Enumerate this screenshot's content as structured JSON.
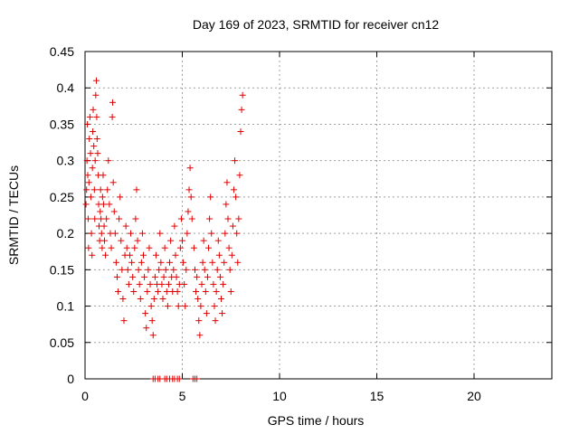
{
  "chart_data": {
    "type": "scatter",
    "title": "Day 169 of 2023, SRMTID for receiver cn12",
    "xlabel": "GPS time / hours",
    "ylabel": "SRMTID / TECUs",
    "xlim": [
      0,
      24
    ],
    "ylim": [
      0,
      0.45
    ],
    "xticks": [
      0,
      5,
      10,
      15,
      20
    ],
    "xtick_labels": [
      "0",
      "5",
      "10",
      "15",
      "20"
    ],
    "yticks": [
      0,
      0.05,
      0.1,
      0.15,
      0.2,
      0.25,
      0.3,
      0.35,
      0.4,
      0.45
    ],
    "ytick_labels": [
      "0",
      "0.05",
      "0.1",
      "0.15",
      "0.2",
      "0.25",
      "0.3",
      "0.35",
      "0.4",
      "0.45"
    ],
    "grid": true,
    "marker": "+",
    "color": "#e00000",
    "series": [
      {
        "name": "SRMTID",
        "points": [
          [
            0.05,
            0.24
          ],
          [
            0.08,
            0.26
          ],
          [
            0.1,
            0.3
          ],
          [
            0.12,
            0.35
          ],
          [
            0.14,
            0.28
          ],
          [
            0.16,
            0.22
          ],
          [
            0.18,
            0.18
          ],
          [
            0.2,
            0.27
          ],
          [
            0.22,
            0.33
          ],
          [
            0.25,
            0.36
          ],
          [
            0.28,
            0.31
          ],
          [
            0.3,
            0.25
          ],
          [
            0.33,
            0.2
          ],
          [
            0.36,
            0.17
          ],
          [
            0.38,
            0.29
          ],
          [
            0.4,
            0.34
          ],
          [
            0.42,
            0.37
          ],
          [
            0.45,
            0.32
          ],
          [
            0.48,
            0.26
          ],
          [
            0.5,
            0.22
          ],
          [
            0.52,
            0.3
          ],
          [
            0.55,
            0.39
          ],
          [
            0.58,
            0.41
          ],
          [
            0.6,
            0.36
          ],
          [
            0.62,
            0.33
          ],
          [
            0.65,
            0.31
          ],
          [
            0.68,
            0.28
          ],
          [
            0.7,
            0.24
          ],
          [
            0.72,
            0.21
          ],
          [
            0.75,
            0.19
          ],
          [
            0.78,
            0.23
          ],
          [
            0.8,
            0.26
          ],
          [
            0.82,
            0.22
          ],
          [
            0.85,
            0.2
          ],
          [
            0.88,
            0.18
          ],
          [
            0.9,
            0.25
          ],
          [
            0.93,
            0.28
          ],
          [
            0.95,
            0.24
          ],
          [
            0.98,
            0.21
          ],
          [
            1.0,
            0.19
          ],
          [
            1.05,
            0.17
          ],
          [
            1.1,
            0.22
          ],
          [
            1.15,
            0.26
          ],
          [
            1.2,
            0.3
          ],
          [
            1.25,
            0.24
          ],
          [
            1.3,
            0.2
          ],
          [
            1.35,
            0.18
          ],
          [
            1.4,
            0.36
          ],
          [
            1.42,
            0.38
          ],
          [
            1.45,
            0.27
          ],
          [
            1.5,
            0.23
          ],
          [
            1.55,
            0.2
          ],
          [
            1.6,
            0.16
          ],
          [
            1.65,
            0.14
          ],
          [
            1.7,
            0.12
          ],
          [
            1.75,
            0.22
          ],
          [
            1.8,
            0.25
          ],
          [
            1.85,
            0.19
          ],
          [
            1.9,
            0.15
          ],
          [
            1.95,
            0.11
          ],
          [
            2.0,
            0.08
          ],
          [
            2.05,
            0.17
          ],
          [
            2.1,
            0.21
          ],
          [
            2.15,
            0.18
          ],
          [
            2.2,
            0.15
          ],
          [
            2.25,
            0.13
          ],
          [
            2.3,
            0.17
          ],
          [
            2.35,
            0.2
          ],
          [
            2.4,
            0.16
          ],
          [
            2.45,
            0.14
          ],
          [
            2.5,
            0.12
          ],
          [
            2.55,
            0.18
          ],
          [
            2.6,
            0.22
          ],
          [
            2.65,
            0.26
          ],
          [
            2.7,
            0.19
          ],
          [
            2.75,
            0.15
          ],
          [
            2.8,
            0.13
          ],
          [
            2.85,
            0.11
          ],
          [
            2.9,
            0.16
          ],
          [
            2.95,
            0.2
          ],
          [
            3.0,
            0.17
          ],
          [
            3.05,
            0.14
          ],
          [
            3.1,
            0.09
          ],
          [
            3.15,
            0.07
          ],
          [
            3.2,
            0.12
          ],
          [
            3.25,
            0.15
          ],
          [
            3.3,
            0.18
          ],
          [
            3.35,
            0.13
          ],
          [
            3.4,
            0.1
          ],
          [
            3.45,
            0.08
          ],
          [
            3.5,
            0.06
          ],
          [
            3.55,
            0.11
          ],
          [
            3.6,
            0.14
          ],
          [
            3.65,
            0.17
          ],
          [
            3.7,
            0.13
          ],
          [
            3.75,
            0.12
          ],
          [
            3.8,
            0.15
          ],
          [
            3.85,
            0.2
          ],
          [
            3.9,
            0.16
          ],
          [
            3.95,
            0.13
          ],
          [
            4.0,
            0.11
          ],
          [
            4.05,
            0.14
          ],
          [
            4.1,
            0.18
          ],
          [
            4.15,
            0.15
          ],
          [
            4.2,
            0.12
          ],
          [
            4.25,
            0.1
          ],
          [
            4.3,
            0.13
          ],
          [
            4.35,
            0.16
          ],
          [
            4.4,
            0.19
          ],
          [
            4.45,
            0.14
          ],
          [
            4.5,
            0.12
          ],
          [
            4.55,
            0.15
          ],
          [
            4.6,
            0.21
          ],
          [
            4.65,
            0.17
          ],
          [
            4.7,
            0.14
          ],
          [
            4.75,
            0.12
          ],
          [
            4.8,
            0.1
          ],
          [
            4.85,
            0.13
          ],
          [
            4.9,
            0.18
          ],
          [
            4.95,
            0.22
          ],
          [
            5.0,
            0.19
          ],
          [
            5.05,
            0.16
          ],
          [
            5.1,
            0.13
          ],
          [
            5.15,
            0.1
          ],
          [
            5.2,
            0.15
          ],
          [
            5.25,
            0.2
          ],
          [
            5.3,
            0.23
          ],
          [
            5.35,
            0.26
          ],
          [
            5.4,
            0.29
          ],
          [
            5.45,
            0.25
          ],
          [
            5.5,
            0.22
          ],
          [
            5.6,
            0.18
          ],
          [
            5.65,
            0.15
          ],
          [
            5.7,
            0.12
          ],
          [
            5.75,
            0.14
          ],
          [
            5.8,
            0.11
          ],
          [
            5.85,
            0.08
          ],
          [
            5.9,
            0.06
          ],
          [
            5.95,
            0.1
          ],
          [
            6.0,
            0.13
          ],
          [
            6.05,
            0.16
          ],
          [
            6.1,
            0.19
          ],
          [
            6.15,
            0.15
          ],
          [
            6.2,
            0.12
          ],
          [
            6.25,
            0.09
          ],
          [
            6.3,
            0.14
          ],
          [
            6.35,
            0.18
          ],
          [
            6.4,
            0.22
          ],
          [
            6.45,
            0.25
          ],
          [
            6.5,
            0.2
          ],
          [
            6.55,
            0.16
          ],
          [
            6.6,
            0.13
          ],
          [
            6.65,
            0.1
          ],
          [
            6.7,
            0.08
          ],
          [
            6.75,
            0.12
          ],
          [
            6.8,
            0.15
          ],
          [
            6.85,
            0.19
          ],
          [
            6.9,
            0.17
          ],
          [
            6.95,
            0.14
          ],
          [
            7.0,
            0.11
          ],
          [
            7.05,
            0.09
          ],
          [
            7.1,
            0.13
          ],
          [
            7.15,
            0.16
          ],
          [
            7.2,
            0.2
          ],
          [
            7.25,
            0.24
          ],
          [
            7.3,
            0.27
          ],
          [
            7.35,
            0.22
          ],
          [
            7.4,
            0.18
          ],
          [
            7.45,
            0.15
          ],
          [
            7.5,
            0.12
          ],
          [
            7.55,
            0.17
          ],
          [
            7.6,
            0.21
          ],
          [
            7.65,
            0.26
          ],
          [
            7.7,
            0.3
          ],
          [
            7.75,
            0.25
          ],
          [
            7.8,
            0.2
          ],
          [
            7.85,
            0.16
          ],
          [
            7.9,
            0.22
          ],
          [
            7.95,
            0.28
          ],
          [
            8.0,
            0.34
          ],
          [
            8.05,
            0.37
          ],
          [
            8.1,
            0.39
          ],
          [
            3.5,
            0
          ],
          [
            3.6,
            0
          ],
          [
            3.75,
            0
          ],
          [
            3.85,
            0
          ],
          [
            4.1,
            0
          ],
          [
            4.2,
            0
          ],
          [
            4.35,
            0
          ],
          [
            4.5,
            0
          ],
          [
            4.6,
            0
          ],
          [
            4.75,
            0
          ],
          [
            4.85,
            0
          ],
          [
            5.55,
            0
          ],
          [
            5.65,
            0
          ],
          [
            5.75,
            0
          ]
        ]
      }
    ]
  }
}
